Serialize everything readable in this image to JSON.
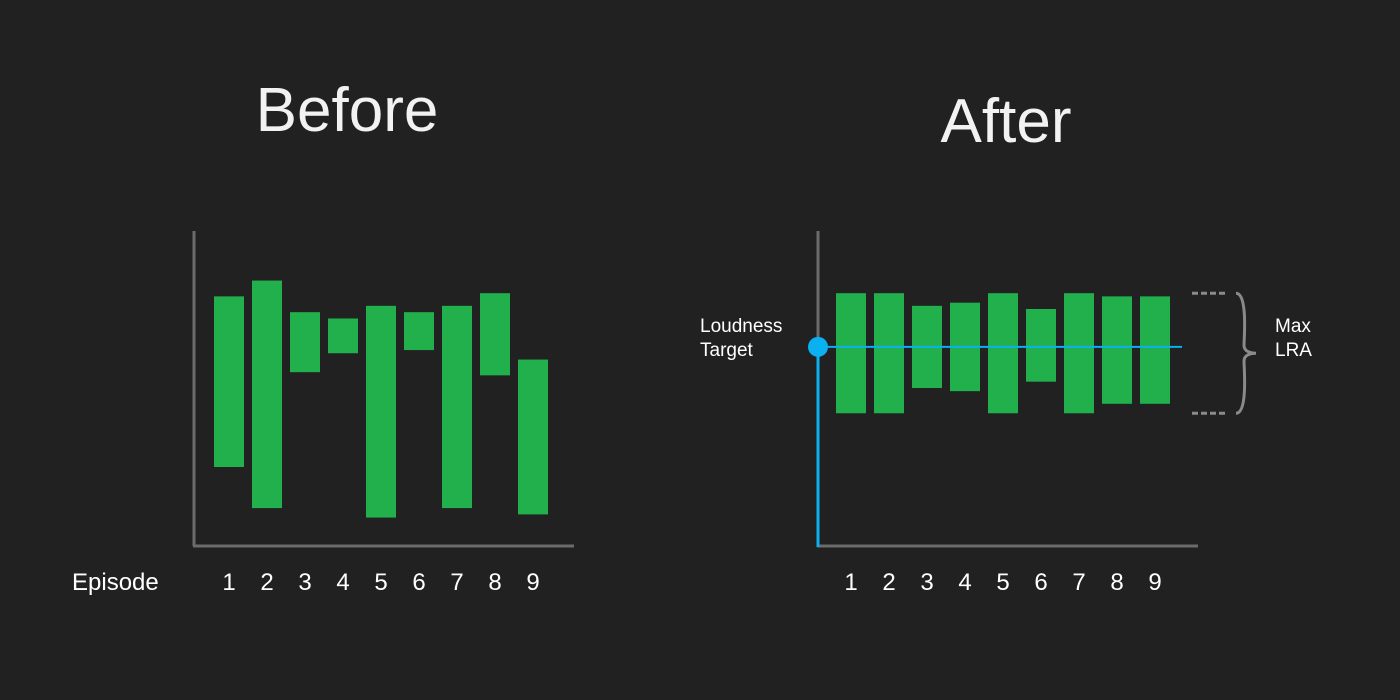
{
  "colors": {
    "background": "#212121",
    "bar": "#21b04b",
    "axis": "#6b6b6b",
    "target": "#0ab0f0",
    "bracket": "#8a8a8a"
  },
  "chart_data": [
    {
      "type": "bar",
      "variant": "floating-range",
      "title": "Before",
      "xlabel": "Episode",
      "categories": [
        "1",
        "2",
        "3",
        "4",
        "5",
        "6",
        "7",
        "8",
        "9"
      ],
      "series": [
        {
          "ranges": [
            [
              25,
              79
            ],
            [
              12,
              84
            ],
            [
              55,
              74
            ],
            [
              61,
              72
            ],
            [
              9,
              76
            ],
            [
              62,
              74
            ],
            [
              12,
              76
            ],
            [
              54,
              80
            ],
            [
              10,
              59
            ]
          ]
        }
      ],
      "ylim": [
        0,
        100
      ],
      "grid": false
    },
    {
      "type": "bar",
      "variant": "floating-range",
      "title": "After",
      "xlabel": "",
      "categories": [
        "1",
        "2",
        "3",
        "4",
        "5",
        "6",
        "7",
        "8",
        "9"
      ],
      "series": [
        {
          "ranges": [
            [
              42,
              80
            ],
            [
              42,
              80
            ],
            [
              50,
              76
            ],
            [
              49,
              77
            ],
            [
              42,
              80
            ],
            [
              52,
              75
            ],
            [
              42,
              80
            ],
            [
              45,
              79
            ],
            [
              45,
              79
            ]
          ]
        }
      ],
      "ylim": [
        0,
        100
      ],
      "grid": false,
      "annotations": {
        "target_label": [
          "Loudness",
          "Target"
        ],
        "target_value": 63,
        "range_label": [
          "Max",
          "LRA"
        ],
        "range_band": [
          42,
          80
        ]
      }
    }
  ]
}
